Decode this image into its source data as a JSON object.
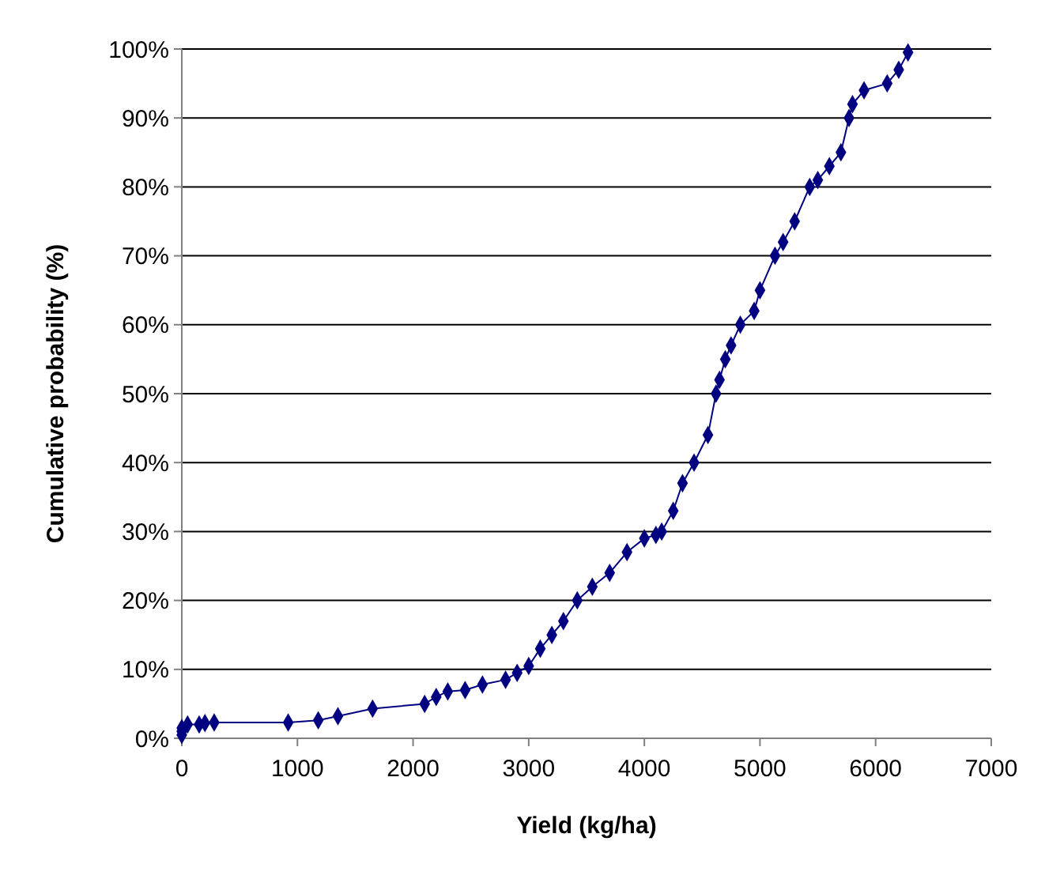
{
  "chart_data": {
    "type": "line",
    "xlabel": "Yield (kg/ha)",
    "ylabel": "Cumulative probability (%)",
    "series": [
      {
        "color": "#000080",
        "x": [
          0,
          0,
          0,
          50,
          150,
          200,
          280,
          920,
          1180,
          1350,
          1650,
          2100,
          2200,
          2300,
          2450,
          2600,
          2800,
          2900,
          3000,
          3100,
          3200,
          3300,
          3420,
          3550,
          3700,
          3850,
          4000,
          4100,
          4150,
          4250,
          4330,
          4430,
          4550,
          4620,
          4650,
          4700,
          4750,
          4830,
          4950,
          5000,
          5130,
          5200,
          5300,
          5430,
          5500,
          5600,
          5700,
          5770,
          5800,
          5900,
          6100,
          6200,
          6280
        ],
        "values": [
          0.5,
          1,
          1.5,
          2,
          2,
          2.2,
          2.3,
          2.3,
          2.6,
          3.2,
          4.3,
          5,
          6,
          6.8,
          7,
          7.8,
          8.5,
          9.5,
          10.5,
          13,
          15,
          17,
          20,
          22,
          24,
          27,
          29,
          29.5,
          30,
          33,
          37,
          40,
          44,
          50,
          52,
          55,
          57,
          60,
          62,
          65,
          70,
          72,
          75,
          80,
          81,
          83,
          85,
          90,
          92,
          94,
          95,
          97,
          99.5
        ]
      }
    ],
    "marker": "diamond",
    "grid": "y",
    "xlim": [
      0,
      7000
    ],
    "xticks": [
      0,
      1000,
      2000,
      3000,
      4000,
      5000,
      6000,
      7000
    ],
    "ylim": [
      0,
      100
    ],
    "yticks": [
      {
        "value": 0,
        "label": "0%"
      },
      {
        "value": 10,
        "label": "10%"
      },
      {
        "value": 20,
        "label": "20%"
      },
      {
        "value": 30,
        "label": "30%"
      },
      {
        "value": 40,
        "label": "40%"
      },
      {
        "value": 50,
        "label": "50%"
      },
      {
        "value": 60,
        "label": "60%"
      },
      {
        "value": 70,
        "label": "70%"
      },
      {
        "value": 80,
        "label": "80%"
      },
      {
        "value": 90,
        "label": "90%"
      },
      {
        "value": 100,
        "label": "100%"
      }
    ]
  }
}
